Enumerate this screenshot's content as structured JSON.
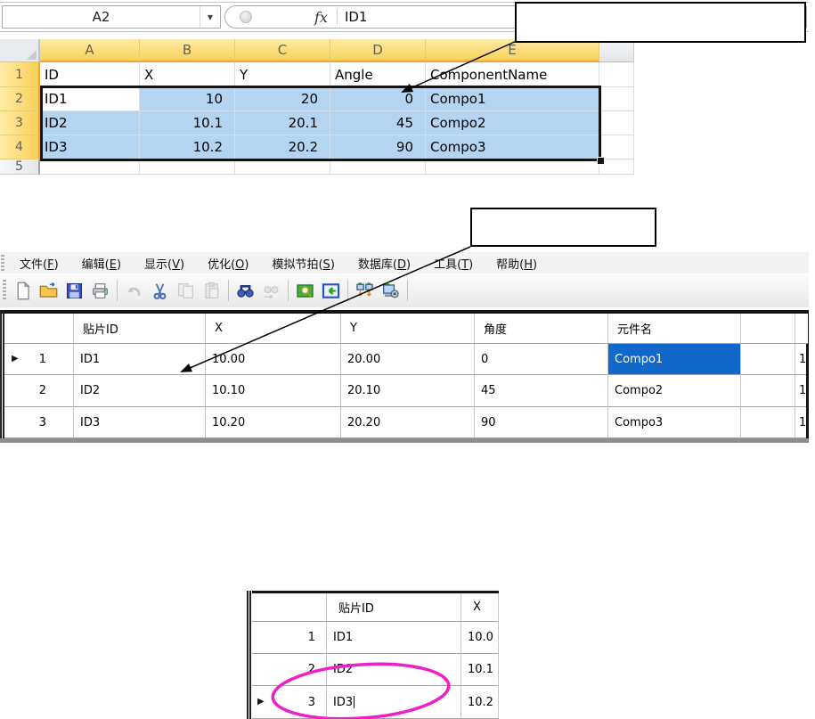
{
  "excel": {
    "name_box_value": "A2",
    "fx_label": "fx",
    "formula_bar_value": "ID1",
    "column_headers": [
      "A",
      "B",
      "C",
      "D",
      "E"
    ],
    "row_headers": [
      "1",
      "2",
      "3",
      "4",
      "5"
    ],
    "header_row": [
      "ID",
      "X",
      "Y",
      "Angle",
      "ComponentName"
    ],
    "data_rows": [
      [
        "ID1",
        "10",
        "20",
        "0",
        "Compo1"
      ],
      [
        "ID2",
        "10.1",
        "20.1",
        "45",
        "Compo2"
      ],
      [
        "ID3",
        "10.2",
        "20.2",
        "90",
        "Compo3"
      ]
    ],
    "active_cell": "A2"
  },
  "callouts": {
    "top_box_text": "",
    "middle_box_text": ""
  },
  "app": {
    "menu_items": [
      {
        "label": "文件",
        "key": "F"
      },
      {
        "label": "编辑",
        "key": "E"
      },
      {
        "label": "显示",
        "key": "V"
      },
      {
        "label": "优化",
        "key": "O"
      },
      {
        "label": "模拟节拍",
        "key": "S"
      },
      {
        "label": "数据库",
        "key": "D"
      },
      {
        "label": "工具",
        "key": "T"
      },
      {
        "label": "帮助",
        "key": "H"
      }
    ],
    "toolbar": [
      {
        "icon": "new-document-icon",
        "disabled": false
      },
      {
        "icon": "open-folder-icon",
        "disabled": false
      },
      {
        "icon": "save-icon",
        "disabled": false
      },
      {
        "icon": "print-icon",
        "disabled": false
      },
      {
        "sep": true
      },
      {
        "icon": "undo-icon",
        "disabled": true
      },
      {
        "icon": "cut-icon",
        "disabled": false
      },
      {
        "icon": "copy-icon",
        "disabled": true
      },
      {
        "icon": "paste-icon",
        "disabled": true
      },
      {
        "sep": true
      },
      {
        "icon": "find-icon",
        "disabled": false
      },
      {
        "icon": "find-next-icon",
        "disabled": true
      },
      {
        "sep": true
      },
      {
        "icon": "preview-icon",
        "disabled": false
      },
      {
        "icon": "import-icon",
        "disabled": false
      },
      {
        "sep": true
      },
      {
        "icon": "line-balance-icon",
        "disabled": false
      },
      {
        "icon": "optimize-capture-icon",
        "disabled": false
      },
      {
        "sep": true
      }
    ],
    "grid": {
      "headers": [
        "贴片ID",
        "X",
        "Y",
        "角度",
        "元件名"
      ],
      "rows": [
        {
          "num": "1",
          "cells": [
            "ID1",
            "10.00",
            "20.00",
            "0",
            "Compo1"
          ],
          "overflow": "1",
          "current": true,
          "selected_col": 4
        },
        {
          "num": "2",
          "cells": [
            "ID2",
            "10.10",
            "20.10",
            "45",
            "Compo2"
          ],
          "overflow": "1"
        },
        {
          "num": "3",
          "cells": [
            "ID3",
            "10.20",
            "20.20",
            "90",
            "Compo3"
          ],
          "overflow": "1"
        }
      ]
    }
  },
  "mini_grid": {
    "headers": [
      "贴片ID",
      "X"
    ],
    "rows": [
      {
        "num": "1",
        "cells": [
          "ID1",
          "10.0"
        ]
      },
      {
        "num": "2",
        "cells": [
          "ID2",
          "10.1"
        ]
      },
      {
        "num": "3",
        "cells": [
          "ID3",
          "10.2"
        ],
        "current": true,
        "editing_cell": 0
      }
    ]
  },
  "colors": {
    "excel_header_selected": "#FAD158",
    "excel_selection_fill": "#B3D5F2",
    "grid_selected_cell": "#1167CA",
    "highlight_ellipse": "#EE1EC8",
    "annotation": "#000000"
  }
}
